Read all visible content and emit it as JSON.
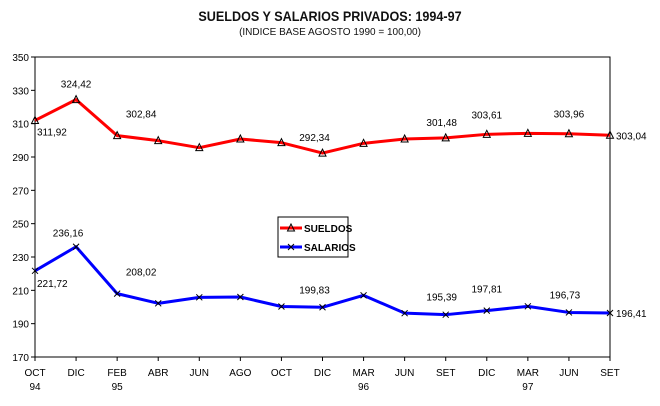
{
  "chart_data": {
    "type": "line",
    "title": "SUELDOS Y SALARIOS PRIVADOS: 1994-97",
    "subtitle": "(INDICE BASE AGOSTO 1990 = 100,00)",
    "xlabel": "",
    "ylabel": "",
    "ylim": [
      170,
      350
    ],
    "yticks": [
      170,
      190,
      210,
      230,
      250,
      270,
      290,
      310,
      330,
      350
    ],
    "grid": false,
    "legend_position": "center",
    "categories": [
      "OCT",
      "DIC",
      "FEB",
      "ABR",
      "JUN",
      "AGO",
      "OCT",
      "DIC",
      "MAR",
      "JUN",
      "SET",
      "DIC",
      "MAR",
      "JUN",
      "SET"
    ],
    "year_labels": [
      "94",
      "",
      "95",
      "",
      "",
      "",
      "",
      "",
      "96",
      "",
      "",
      "",
      "97",
      "",
      ""
    ],
    "series": [
      {
        "name": "SUELDOS",
        "color": "#ff0000",
        "marker": "triangle",
        "values": [
          311.92,
          324.42,
          302.84,
          299.8,
          295.6,
          300.8,
          298.6,
          292.34,
          298.2,
          300.8,
          301.48,
          303.61,
          304.2,
          303.96,
          303.04
        ],
        "data_labels": [
          "311,92",
          "324,42",
          "302,84",
          null,
          null,
          null,
          null,
          "292,34",
          null,
          null,
          "301,48",
          "303,61",
          null,
          "303,96",
          "303,04"
        ]
      },
      {
        "name": "SALARIOS",
        "color": "#0000ff",
        "marker": "x",
        "values": [
          221.72,
          236.16,
          208.02,
          202.2,
          205.8,
          206.0,
          200.3,
          199.83,
          207.0,
          196.3,
          195.39,
          197.81,
          200.4,
          196.73,
          196.41
        ],
        "data_labels": [
          "221,72",
          "236,16",
          "208,02",
          null,
          null,
          null,
          null,
          "199,83",
          null,
          null,
          "195,39",
          "197,81",
          null,
          "196,73",
          "196,41"
        ]
      }
    ]
  }
}
